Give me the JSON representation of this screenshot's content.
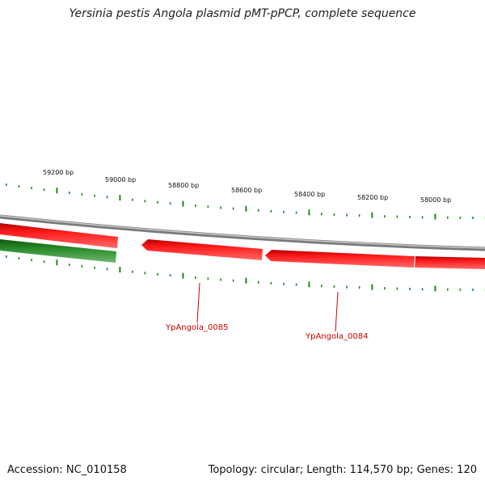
{
  "title": "Yersinia pestis Angola plasmid pMT-pPCP, complete sequence",
  "footer": {
    "accession_label": "Accession:",
    "accession": "NC_010158",
    "topology_label": "Topology:",
    "topology": "circular",
    "length_label": "Length:",
    "length_bp": 114570,
    "length_text": "114,570 bp",
    "genes_label": "Genes:",
    "genes": 120
  },
  "scale_labels": [
    "59200 bp",
    "59000 bp",
    "58800 bp",
    "58600 bp",
    "58400 bp",
    "58200 bp",
    "58000 bp"
  ],
  "gene_labels": [
    "YpAngola_0085",
    "YpAngola_0084"
  ],
  "colors": {
    "forward_tick": "#1a8a1a",
    "backbone": "#8a8a8a",
    "reverse_gene": "#ee1111",
    "forward_gene": "#1e7a1e",
    "label": "#cc0000"
  }
}
